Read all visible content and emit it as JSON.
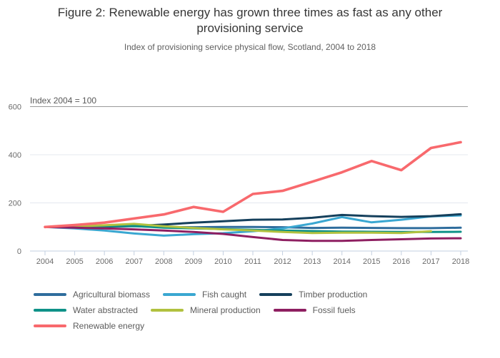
{
  "header": {
    "title": "Figure 2: Renewable energy has grown three times as fast as any other provisioning service",
    "subtitle": "Index of provisioning service physical flow, Scotland, 2004 to 2018"
  },
  "chart_data": {
    "type": "line",
    "title": "Figure 2: Renewable energy has grown three times as fast as any other provisioning service",
    "subtitle": "Index of provisioning service physical flow, Scotland, 2004 to 2018",
    "annotation": "Index 2004 = 100",
    "x": [
      2004,
      2005,
      2006,
      2007,
      2008,
      2009,
      2010,
      2011,
      2012,
      2013,
      2014,
      2015,
      2016,
      2017,
      2018
    ],
    "ylim": [
      0,
      600
    ],
    "yticks": [
      0,
      200,
      400,
      600
    ],
    "grid": "horizontal",
    "legend_position": "bottom",
    "series": [
      {
        "name": "Agricultural biomass",
        "color": "#2f6d9d",
        "width": 3,
        "values": [
          100,
          100,
          101,
          103,
          100,
          99,
          100,
          100,
          99,
          96,
          97,
          96,
          95,
          95,
          97
        ]
      },
      {
        "name": "Fish caught",
        "color": "#3aa7d1",
        "width": 3,
        "values": [
          100,
          94,
          85,
          73,
          64,
          70,
          74,
          82,
          94,
          114,
          141,
          119,
          130,
          144,
          148
        ]
      },
      {
        "name": "Timber production",
        "color": "#15405c",
        "width": 3,
        "values": [
          100,
          100,
          101,
          104,
          110,
          118,
          124,
          130,
          131,
          138,
          150,
          145,
          142,
          145,
          153
        ]
      },
      {
        "name": "Water abstracted",
        "color": "#0f9288",
        "width": 3,
        "values": [
          100,
          101,
          103,
          104,
          97,
          94,
          91,
          88,
          85,
          83,
          81,
          80,
          79,
          79,
          80
        ]
      },
      {
        "name": "Mineral production",
        "color": "#b1c13f",
        "width": 3,
        "values": [
          100,
          102,
          107,
          113,
          103,
          96,
          90,
          85,
          79,
          75,
          76,
          76,
          75,
          82,
          null
        ]
      },
      {
        "name": "Fossil fuels",
        "color": "#8e1f61",
        "width": 3,
        "values": [
          100,
          97,
          94,
          90,
          85,
          79,
          71,
          58,
          46,
          42,
          42,
          46,
          49,
          52,
          53
        ]
      },
      {
        "name": "Renewable energy",
        "color": "#f8696d",
        "width": 3.6,
        "values": [
          100,
          108,
          118,
          135,
          152,
          183,
          163,
          237,
          250,
          288,
          327,
          374,
          336,
          428,
          452
        ]
      }
    ],
    "legend_rows": [
      [
        0,
        1,
        2
      ],
      [
        3,
        4,
        5
      ],
      [
        6
      ]
    ]
  },
  "axis_colors": {
    "baseline": "#c3cfe0",
    "gridline": "#e4e8ef",
    "topline": "#9a9a9a",
    "tick_text": "#6b6b6b",
    "annotation_text": "#595959"
  }
}
